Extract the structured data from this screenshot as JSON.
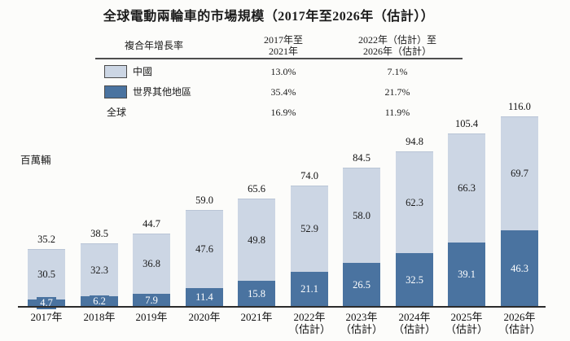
{
  "title": "全球電動兩輪車的市場規模（2017年至2026年（估計））",
  "unit_label": "百萬輛",
  "colors": {
    "china_light_blue": "#ccd6e4",
    "row_dark_blue": "#4a73a0",
    "axis": "#2b2b2b",
    "rule": "#4d4d4d",
    "text": "#1b1b1b"
  },
  "cagr_table": {
    "header": {
      "col1": "複合年增長率",
      "col2_line1": "2017年至",
      "col2_line2": "2021年",
      "col3_line1": "2022年（估計）至",
      "col3_line2": "2026年（估計）"
    },
    "rows": [
      {
        "label": "中國",
        "swatch": "china_light_blue",
        "cagr_2017_2021": "13.0%",
        "cagr_2022_2026": "7.1%"
      },
      {
        "label": "世界其他地區",
        "swatch": "row_dark_blue",
        "cagr_2017_2021": "35.4%",
        "cagr_2022_2026": "21.7%"
      },
      {
        "label": "全球",
        "swatch": null,
        "cagr_2017_2021": "16.9%",
        "cagr_2022_2026": "11.9%"
      }
    ]
  },
  "chart_data": {
    "type": "bar",
    "stacked": true,
    "title": "全球電動兩輪車的市場規模（2017年至2026年（估計））",
    "ylabel": "百萬輛",
    "ylim": [
      0,
      120
    ],
    "grid": false,
    "legend_position": "table-top-left",
    "categories": [
      {
        "label": "2017年",
        "sublabel": ""
      },
      {
        "label": "2018年",
        "sublabel": ""
      },
      {
        "label": "2019年",
        "sublabel": ""
      },
      {
        "label": "2020年",
        "sublabel": ""
      },
      {
        "label": "2021年",
        "sublabel": ""
      },
      {
        "label": "2022年",
        "sublabel": "（估計）"
      },
      {
        "label": "2023年",
        "sublabel": "（估計）"
      },
      {
        "label": "2024年",
        "sublabel": "（估計）"
      },
      {
        "label": "2025年",
        "sublabel": "（估計）"
      },
      {
        "label": "2026年",
        "sublabel": "（估計）"
      }
    ],
    "series": [
      {
        "name": "世界其他地區",
        "color": "#4a73a0",
        "values": [
          4.7,
          6.2,
          7.9,
          11.4,
          15.8,
          21.1,
          26.5,
          32.5,
          39.1,
          46.3
        ]
      },
      {
        "name": "中國",
        "color": "#ccd6e4",
        "values": [
          30.5,
          32.3,
          36.8,
          47.6,
          49.8,
          52.9,
          58.0,
          62.3,
          66.3,
          69.7
        ]
      }
    ],
    "totals": [
      35.2,
      38.5,
      44.7,
      59.0,
      65.6,
      74.0,
      84.5,
      94.8,
      105.4,
      116.0
    ]
  }
}
